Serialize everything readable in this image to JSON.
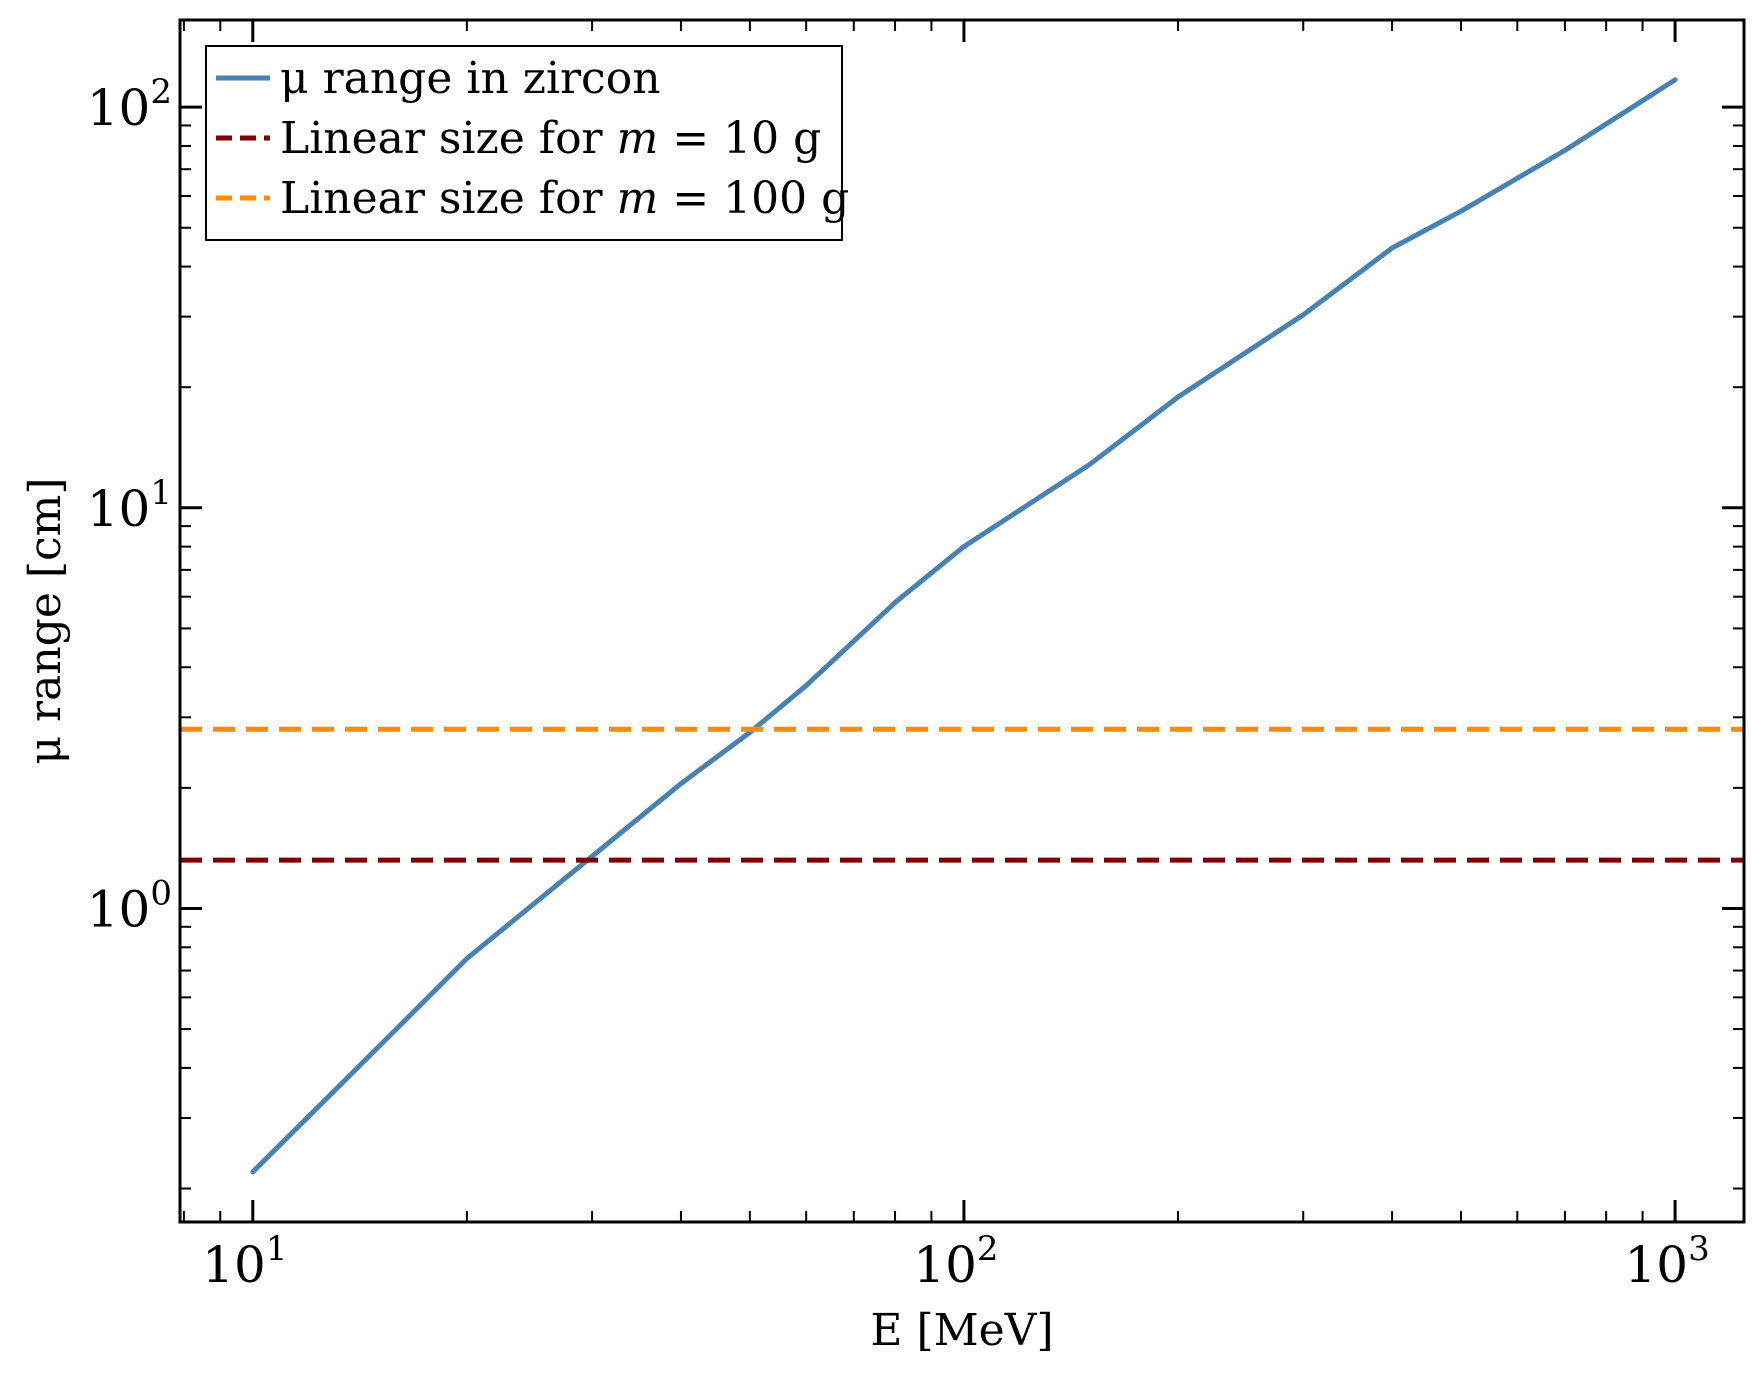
{
  "chart_data": {
    "type": "line",
    "title": "",
    "xlabel": "E [MeV]",
    "ylabel": "μ range [cm]",
    "xscale": "log",
    "yscale": "log",
    "xlim": [
      7.9,
      1250
    ],
    "ylim": [
      0.165,
      165
    ],
    "grid": false,
    "legend_position": "top-left",
    "x_ticks": [
      {
        "base": "10",
        "exp": "1",
        "value": 10
      },
      {
        "base": "10",
        "exp": "2",
        "value": 100
      },
      {
        "base": "10",
        "exp": "3",
        "value": 1000
      }
    ],
    "y_ticks": [
      {
        "base": "10",
        "exp": "0",
        "value": 1
      },
      {
        "base": "10",
        "exp": "1",
        "value": 10
      },
      {
        "base": "10",
        "exp": "2",
        "value": 100
      }
    ],
    "series": [
      {
        "name": "μ range in zircon",
        "style": "solid",
        "color": "#4682b4",
        "x": [
          10,
          15,
          20,
          30,
          40,
          50,
          60,
          80,
          100,
          150,
          200,
          300,
          400,
          500,
          700,
          1000
        ],
        "y": [
          0.22,
          0.45,
          0.75,
          1.35,
          2.05,
          2.75,
          3.6,
          5.8,
          8.0,
          12.8,
          18.9,
          30.3,
          44.5,
          55.0,
          78.0,
          117.0
        ]
      },
      {
        "name": "Linear size for m = 10 g",
        "legend_parts": [
          "Linear size for ",
          "m",
          " = 10 g"
        ],
        "style": "dashed",
        "color": "#800000",
        "constant_y": 1.32
      },
      {
        "name": "Linear size for m = 100 g",
        "legend_parts": [
          "Linear size for ",
          "m",
          " = 100 g"
        ],
        "style": "dashed",
        "color": "#ff8c00",
        "constant_y": 2.8
      }
    ]
  }
}
